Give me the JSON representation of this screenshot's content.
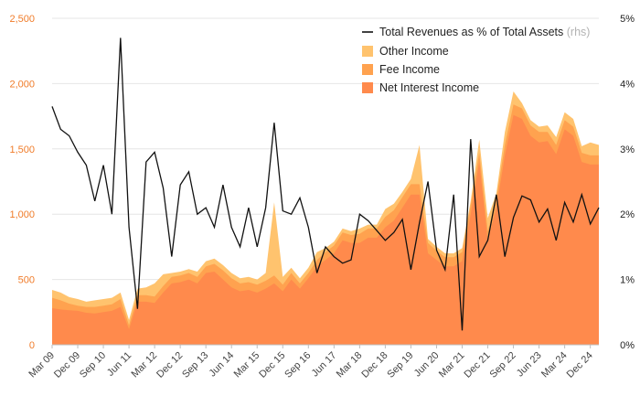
{
  "chart_data": {
    "type": "area",
    "stacked": true,
    "x_dates": [
      "2009-03",
      "2009-06",
      "2009-09",
      "2009-12",
      "2010-03",
      "2010-06",
      "2010-09",
      "2010-12",
      "2011-03",
      "2011-06",
      "2011-09",
      "2011-12",
      "2012-03",
      "2012-06",
      "2012-09",
      "2012-12",
      "2013-03",
      "2013-06",
      "2013-09",
      "2013-12",
      "2014-03",
      "2014-06",
      "2014-09",
      "2014-12",
      "2015-03",
      "2015-06",
      "2015-09",
      "2015-12",
      "2016-03",
      "2016-06",
      "2016-09",
      "2016-12",
      "2017-03",
      "2017-06",
      "2017-09",
      "2017-12",
      "2018-03",
      "2018-06",
      "2018-09",
      "2018-12",
      "2019-03",
      "2019-06",
      "2019-09",
      "2019-12",
      "2020-03",
      "2020-06",
      "2020-09",
      "2020-12",
      "2021-03",
      "2021-06",
      "2021-09",
      "2021-12",
      "2022-03",
      "2022-06",
      "2022-09",
      "2022-12",
      "2023-03",
      "2023-06",
      "2023-09",
      "2023-12",
      "2024-03",
      "2024-06",
      "2024-09",
      "2024-12",
      "2025-03"
    ],
    "x_tick_labels": [
      "Mar 09",
      "Dec 09",
      "Sep 10",
      "Jun 11",
      "Mar 12",
      "Dec 12",
      "Sep 13",
      "Jun 14",
      "Mar 15",
      "Dec 15",
      "Sep 16",
      "Jun 17",
      "Mar 18",
      "Dec 18",
      "Sep 19",
      "Jun 20",
      "Mar 21",
      "Dec 21",
      "Sep 22",
      "Jun 23",
      "Mar 24",
      "Dec 24"
    ],
    "y_left": {
      "ticks": [
        "0",
        "500",
        "1,000",
        "1,500",
        "2,000",
        "2,500"
      ],
      "min": 0,
      "max": 2500,
      "color": "#f07c2a"
    },
    "y_right": {
      "ticks": [
        "0%",
        "1%",
        "2%",
        "3%",
        "4%",
        "5%"
      ],
      "min": 0,
      "max": 5,
      "color": "#222222"
    },
    "grid": true,
    "legend_position": "top-right",
    "series": [
      {
        "name": "Net Interest Income",
        "kind": "area",
        "color": "#ff8a4c",
        "values": [
          280,
          270,
          265,
          260,
          245,
          240,
          250,
          260,
          290,
          120,
          330,
          330,
          320,
          400,
          470,
          480,
          500,
          470,
          550,
          560,
          500,
          440,
          410,
          420,
          400,
          430,
          470,
          410,
          500,
          430,
          510,
          600,
          650,
          700,
          800,
          780,
          780,
          820,
          820,
          900,
          950,
          1050,
          1150,
          1150,
          700,
          650,
          600,
          600,
          640,
          1000,
          1400,
          800,
          1050,
          1450,
          1760,
          1730,
          1600,
          1550,
          1560,
          1460,
          1650,
          1600,
          1400,
          1380,
          1380
        ]
      },
      {
        "name": "Fee Income",
        "kind": "area",
        "color": "#ffa24f",
        "values": [
          80,
          70,
          50,
          40,
          45,
          50,
          50,
          50,
          60,
          30,
          50,
          50,
          50,
          50,
          50,
          50,
          50,
          50,
          50,
          60,
          70,
          70,
          60,
          60,
          60,
          60,
          60,
          50,
          50,
          40,
          40,
          50,
          60,
          60,
          60,
          60,
          70,
          70,
          70,
          80,
          80,
          80,
          80,
          80,
          80,
          70,
          70,
          70,
          70,
          70,
          70,
          70,
          70,
          80,
          80,
          80,
          80,
          80,
          70,
          70,
          70,
          70,
          70,
          70,
          70
        ]
      },
      {
        "name": "Other Income",
        "kind": "area",
        "color": "#ffc36e",
        "values": [
          60,
          60,
          50,
          50,
          40,
          50,
          50,
          50,
          50,
          40,
          50,
          60,
          100,
          90,
          30,
          30,
          30,
          40,
          40,
          40,
          40,
          40,
          40,
          40,
          40,
          60,
          560,
          60,
          40,
          40,
          40,
          60,
          30,
          30,
          30,
          30,
          40,
          30,
          30,
          60,
          50,
          40,
          40,
          300,
          30,
          30,
          30,
          30,
          30,
          30,
          100,
          100,
          40,
          100,
          100,
          40,
          40,
          40,
          50,
          60,
          60,
          60,
          50,
          100,
          80
        ]
      },
      {
        "name": "Total Revenues as % of Total Assets",
        "suffix": "(rhs)",
        "kind": "line",
        "axis": "right",
        "color": "#111111",
        "values": [
          3.65,
          3.3,
          3.2,
          2.95,
          2.75,
          2.2,
          2.75,
          2.0,
          4.7,
          1.8,
          0.55,
          2.8,
          2.95,
          2.4,
          1.35,
          2.45,
          2.65,
          2.0,
          2.1,
          1.8,
          2.45,
          1.8,
          1.5,
          2.1,
          1.5,
          2.1,
          3.4,
          2.05,
          2.0,
          2.25,
          1.8,
          1.1,
          1.5,
          1.35,
          1.25,
          1.3,
          2.0,
          1.9,
          1.75,
          1.6,
          1.72,
          1.92,
          1.15,
          1.87,
          2.5,
          1.45,
          1.15,
          2.3,
          0.22,
          3.15,
          1.35,
          1.6,
          2.3,
          1.35,
          1.95,
          2.28,
          2.22,
          1.88,
          2.08,
          1.6,
          2.18,
          1.88,
          2.3,
          1.85,
          2.1
        ]
      }
    ]
  }
}
